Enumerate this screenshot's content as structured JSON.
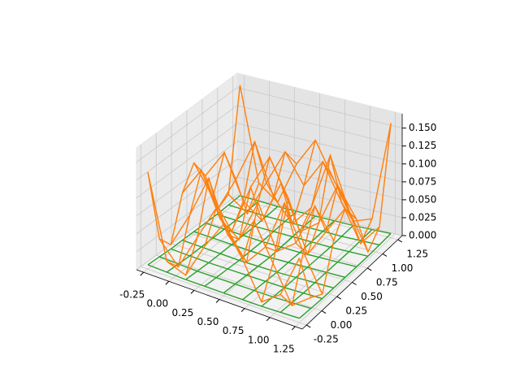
{
  "chart_data": {
    "type": "wireframe3d",
    "x": [
      -0.25,
      -0.0625,
      0.125,
      0.3125,
      0.5,
      0.6875,
      0.875,
      1.0625,
      1.25
    ],
    "y": [
      -0.25,
      -0.0625,
      0.125,
      0.3125,
      0.5,
      0.6875,
      0.875,
      1.0625,
      1.25
    ],
    "series": [
      {
        "color": "#2ca02c",
        "z": [
          [
            0.006,
            0.005,
            0.004,
            0.004,
            0.004,
            0.004,
            0.004,
            0.005,
            0.006
          ],
          [
            0.005,
            0.004,
            0.003,
            0.003,
            0.003,
            0.003,
            0.003,
            0.004,
            0.005
          ],
          [
            0.004,
            0.003,
            0.002,
            0.002,
            0.002,
            0.002,
            0.002,
            0.003,
            0.004
          ],
          [
            0.004,
            0.003,
            0.002,
            0.001,
            0.001,
            0.001,
            0.002,
            0.003,
            0.004
          ],
          [
            0.004,
            0.003,
            0.002,
            0.001,
            0.0,
            0.001,
            0.002,
            0.003,
            0.004
          ],
          [
            0.004,
            0.003,
            0.002,
            0.001,
            0.001,
            0.001,
            0.002,
            0.003,
            0.004
          ],
          [
            0.004,
            0.003,
            0.002,
            0.002,
            0.002,
            0.002,
            0.002,
            0.003,
            0.004
          ],
          [
            0.005,
            0.004,
            0.003,
            0.003,
            0.003,
            0.003,
            0.003,
            0.004,
            0.005
          ],
          [
            0.006,
            0.005,
            0.004,
            0.004,
            0.004,
            0.004,
            0.004,
            0.005,
            0.006
          ]
        ]
      },
      {
        "color": "#ff7f0e",
        "z": [
          [
            0.135,
            0.02,
            0.01,
            0.06,
            0.1,
            0.06,
            0.01,
            0.03,
            0.09
          ],
          [
            0.03,
            0.0,
            0.05,
            0.1,
            0.06,
            0.1,
            0.05,
            0.0,
            0.02
          ],
          [
            0.01,
            0.06,
            0.12,
            0.05,
            0.02,
            0.05,
            0.12,
            0.06,
            0.01
          ],
          [
            0.07,
            0.11,
            0.05,
            0.03,
            0.09,
            0.03,
            0.05,
            0.11,
            0.07
          ],
          [
            0.1,
            0.06,
            0.02,
            0.09,
            0.14,
            0.09,
            0.02,
            0.06,
            0.1
          ],
          [
            0.07,
            0.11,
            0.05,
            0.03,
            0.09,
            0.03,
            0.05,
            0.11,
            0.07
          ],
          [
            0.01,
            0.06,
            0.12,
            0.05,
            0.02,
            0.05,
            0.13,
            0.06,
            0.01
          ],
          [
            0.02,
            0.0,
            0.05,
            0.1,
            0.06,
            0.1,
            0.05,
            0.0,
            0.03
          ],
          [
            0.16,
            0.03,
            0.01,
            0.07,
            0.11,
            0.06,
            0.01,
            0.02,
            0.16
          ]
        ]
      }
    ],
    "xlim": [
      -0.32,
      1.32
    ],
    "ylim": [
      -0.32,
      1.32
    ],
    "zlim": [
      0,
      0.17
    ],
    "xticks": [
      -0.25,
      {
        "value": 0,
        "label": "0.00"
      },
      0.25,
      {
        "value": 0.5,
        "label": "0.50"
      },
      0.75,
      {
        "value": 1,
        "label": "1.00"
      },
      1.25
    ],
    "yticks": [
      -0.25,
      {
        "value": 0,
        "label": "0.00"
      },
      0.25,
      {
        "value": 0.5,
        "label": "0.50"
      },
      0.75,
      {
        "value": 1,
        "label": "1.00"
      },
      1.25
    ],
    "zticks": [
      {
        "value": 0,
        "label": "0.000"
      },
      {
        "value": 0.025,
        "label": "0.025"
      },
      {
        "value": 0.05,
        "label": "0.050"
      },
      {
        "value": 0.075,
        "label": "0.075"
      },
      {
        "value": 0.1,
        "label": "0.100"
      },
      {
        "value": 0.125,
        "label": "0.125"
      },
      {
        "value": 0.15,
        "label": "0.150"
      }
    ],
    "grid": true
  }
}
